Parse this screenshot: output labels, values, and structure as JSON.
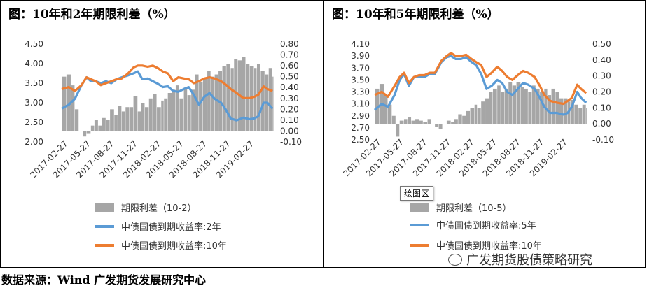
{
  "footer": "数据来源：Wind 广发期货发展研究中心",
  "watermark": "广发期货股债策略研究",
  "tooltip": "绘图区",
  "colors": {
    "spread": "#a6a6a6",
    "y2": "#5b9bd5",
    "y10": "#ed7d31"
  },
  "chart_data": [
    {
      "type": "line",
      "title": "图：10年和2年期限利差（%）",
      "x_ticks": [
        "2017-02-27",
        "2017-05-27",
        "2017-08-27",
        "2017-11-27",
        "2018-02-27",
        "2018-05-27",
        "2018-08-27",
        "2018-11-27",
        "2019-02-27"
      ],
      "x_range": [
        "2017-02-01",
        "2019-05-15"
      ],
      "y_left": {
        "range": [
          2.0,
          4.5
        ],
        "ticks": [
          "2.00",
          "2.50",
          "3.00",
          "3.50",
          "4.00",
          "4.50"
        ]
      },
      "y_right": {
        "range": [
          -0.1,
          0.8
        ],
        "ticks": [
          "-0.10",
          "0.00",
          "0.10",
          "0.20",
          "0.30",
          "0.40",
          "0.50",
          "0.60",
          "0.70",
          "0.80"
        ]
      },
      "series": [
        {
          "name": "期限利差（10-2）",
          "type": "bar",
          "axis": "right",
          "dates": [
            "2017-02-01",
            "2017-02-20",
            "2017-03-10",
            "2017-03-25",
            "2017-04-10",
            "2017-04-25",
            "2017-05-10",
            "2017-05-27",
            "2017-06-10",
            "2017-06-25",
            "2017-07-10",
            "2017-07-25",
            "2017-08-10",
            "2017-08-27",
            "2017-09-10",
            "2017-09-25",
            "2017-10-10",
            "2017-10-25",
            "2017-11-10",
            "2017-11-27",
            "2017-12-10",
            "2017-12-25",
            "2018-01-10",
            "2018-01-25",
            "2018-02-10",
            "2018-02-27",
            "2018-03-10",
            "2018-03-25",
            "2018-04-10",
            "2018-04-25",
            "2018-05-10",
            "2018-05-27",
            "2018-06-10",
            "2018-06-25",
            "2018-07-10",
            "2018-07-25",
            "2018-08-10",
            "2018-08-27",
            "2018-09-10",
            "2018-09-25",
            "2018-10-10",
            "2018-10-25",
            "2018-11-10",
            "2018-11-27",
            "2018-12-10",
            "2018-12-25",
            "2019-01-10",
            "2019-01-25",
            "2019-02-10",
            "2019-02-27",
            "2019-03-10",
            "2019-03-25",
            "2019-04-10",
            "2019-04-25",
            "2019-05-10"
          ],
          "values": [
            0.5,
            0.52,
            0.42,
            0.2,
            0.0,
            -0.05,
            -0.02,
            0.05,
            0.1,
            0.05,
            0.12,
            0.1,
            0.2,
            0.15,
            0.23,
            0.18,
            0.22,
            0.22,
            0.32,
            0.18,
            0.26,
            0.22,
            0.3,
            0.34,
            0.22,
            0.28,
            0.3,
            0.35,
            0.38,
            0.42,
            0.3,
            0.4,
            0.33,
            0.38,
            0.52,
            0.45,
            0.48,
            0.55,
            0.5,
            0.52,
            0.55,
            0.6,
            0.62,
            0.58,
            0.66,
            0.65,
            0.68,
            0.62,
            0.6,
            0.58,
            0.62,
            0.55,
            0.52,
            0.58,
            0.5
          ]
        },
        {
          "name": "中债国债到期收益率:2年",
          "type": "line",
          "axis": "left",
          "dates": [
            "2017-02-01",
            "2017-03-01",
            "2017-03-25",
            "2017-04-20",
            "2017-05-10",
            "2017-05-27",
            "2017-06-15",
            "2017-07-05",
            "2017-07-25",
            "2017-08-15",
            "2017-09-05",
            "2017-09-25",
            "2017-10-20",
            "2017-11-10",
            "2017-11-27",
            "2017-12-15",
            "2018-01-05",
            "2018-01-25",
            "2018-02-15",
            "2018-03-05",
            "2018-03-25",
            "2018-04-15",
            "2018-05-05",
            "2018-05-27",
            "2018-06-15",
            "2018-07-05",
            "2018-07-25",
            "2018-08-15",
            "2018-09-05",
            "2018-09-25",
            "2018-10-20",
            "2018-11-10",
            "2018-11-27",
            "2018-12-20",
            "2019-01-15",
            "2019-02-10",
            "2019-02-27",
            "2019-03-15",
            "2019-04-05",
            "2019-04-20",
            "2019-05-10"
          ],
          "values": [
            2.85,
            2.95,
            3.1,
            3.45,
            3.65,
            3.55,
            3.55,
            3.5,
            3.55,
            3.5,
            3.6,
            3.65,
            3.7,
            3.75,
            3.8,
            3.6,
            3.62,
            3.55,
            3.48,
            3.4,
            3.42,
            3.3,
            3.28,
            3.35,
            3.4,
            3.2,
            2.95,
            3.15,
            3.25,
            3.1,
            3.0,
            2.8,
            2.6,
            2.55,
            2.62,
            2.58,
            2.6,
            2.65,
            3.0,
            3.0,
            2.85
          ]
        },
        {
          "name": "中债国债到期收益率:10年",
          "type": "line",
          "axis": "left",
          "dates": [
            "2017-02-01",
            "2017-03-01",
            "2017-03-25",
            "2017-04-20",
            "2017-05-10",
            "2017-05-27",
            "2017-06-15",
            "2017-07-05",
            "2017-07-25",
            "2017-08-15",
            "2017-09-05",
            "2017-09-25",
            "2017-10-20",
            "2017-11-10",
            "2017-11-27",
            "2017-12-15",
            "2018-01-05",
            "2018-01-25",
            "2018-02-15",
            "2018-03-05",
            "2018-03-25",
            "2018-04-15",
            "2018-05-05",
            "2018-05-27",
            "2018-06-15",
            "2018-07-05",
            "2018-07-25",
            "2018-08-15",
            "2018-09-05",
            "2018-09-25",
            "2018-10-20",
            "2018-11-10",
            "2018-11-27",
            "2018-12-20",
            "2019-01-15",
            "2019-02-10",
            "2019-02-27",
            "2019-03-15",
            "2019-04-05",
            "2019-04-20",
            "2019-05-10"
          ],
          "values": [
            3.35,
            3.4,
            3.3,
            3.45,
            3.65,
            3.6,
            3.55,
            3.45,
            3.5,
            3.55,
            3.6,
            3.62,
            3.75,
            3.9,
            3.95,
            3.95,
            3.92,
            3.95,
            3.88,
            3.8,
            3.75,
            3.55,
            3.65,
            3.62,
            3.6,
            3.5,
            3.55,
            3.62,
            3.65,
            3.62,
            3.55,
            3.45,
            3.35,
            3.25,
            3.12,
            3.12,
            3.15,
            3.2,
            3.42,
            3.35,
            3.3
          ]
        }
      ],
      "legend": [
        "期限利差（10-2）",
        "中债国债到期收益率:2年",
        "中债国债到期收益率:10年"
      ],
      "legend_position": "bottom"
    },
    {
      "type": "line",
      "title": "图：10年和5年期限利差（%）",
      "x_ticks": [
        "2017-02-27",
        "2017-05-27",
        "2017-08-27",
        "2017-11-27",
        "2018-02-27",
        "2018-05-27",
        "2018-08-27",
        "2018-11-27",
        "2019-02-27"
      ],
      "x_range": [
        "2017-02-01",
        "2019-05-15"
      ],
      "y_left": {
        "range": [
          2.5,
          4.1
        ],
        "ticks": [
          "2.50",
          "2.70",
          "2.90",
          "3.10",
          "3.30",
          "3.50",
          "3.70",
          "3.90",
          "4.10"
        ]
      },
      "y_right": {
        "range": [
          -0.1,
          0.5
        ],
        "ticks": [
          "-0.10",
          "0.00",
          "0.10",
          "0.20",
          "0.30",
          "0.40",
          "0.50"
        ]
      },
      "series": [
        {
          "name": "期限利差（10-5）",
          "type": "bar",
          "axis": "right",
          "dates": [
            "2017-02-01",
            "2017-02-20",
            "2017-03-10",
            "2017-03-25",
            "2017-04-10",
            "2017-04-25",
            "2017-05-10",
            "2017-05-27",
            "2017-06-10",
            "2017-06-25",
            "2017-07-10",
            "2017-07-25",
            "2017-08-10",
            "2017-08-27",
            "2017-09-10",
            "2017-09-25",
            "2017-10-10",
            "2017-10-25",
            "2017-11-10",
            "2017-11-27",
            "2017-12-10",
            "2017-12-25",
            "2018-01-10",
            "2018-01-25",
            "2018-02-10",
            "2018-02-27",
            "2018-03-10",
            "2018-03-25",
            "2018-04-10",
            "2018-04-25",
            "2018-05-10",
            "2018-05-27",
            "2018-06-10",
            "2018-06-25",
            "2018-07-10",
            "2018-07-25",
            "2018-08-10",
            "2018-08-27",
            "2018-09-10",
            "2018-09-25",
            "2018-10-10",
            "2018-10-25",
            "2018-11-10",
            "2018-11-27",
            "2018-12-10",
            "2018-12-25",
            "2019-01-10",
            "2019-01-25",
            "2019-02-10",
            "2019-02-27",
            "2019-03-10",
            "2019-03-25",
            "2019-04-10",
            "2019-04-25",
            "2019-05-10"
          ],
          "values": [
            0.22,
            0.25,
            0.18,
            0.12,
            0.05,
            -0.08,
            0.02,
            0.03,
            0.04,
            0.02,
            0.03,
            0.02,
            0.01,
            0.03,
            0.0,
            -0.02,
            -0.03,
            0.0,
            0.02,
            0.01,
            0.03,
            0.06,
            0.05,
            0.08,
            0.1,
            0.12,
            0.1,
            0.14,
            0.16,
            0.2,
            0.22,
            0.24,
            0.2,
            0.22,
            0.26,
            0.24,
            0.26,
            0.23,
            0.22,
            0.2,
            0.24,
            0.22,
            0.2,
            0.22,
            0.18,
            0.22,
            0.2,
            0.16,
            0.16,
            0.14,
            0.15,
            0.12,
            0.1,
            0.12,
            0.1
          ]
        },
        {
          "name": "中债国债到期收益率:5年",
          "type": "line",
          "axis": "left",
          "dates": [
            "2017-02-01",
            "2017-03-01",
            "2017-03-25",
            "2017-04-20",
            "2017-05-10",
            "2017-05-27",
            "2017-06-15",
            "2017-07-05",
            "2017-07-25",
            "2017-08-15",
            "2017-09-05",
            "2017-09-25",
            "2017-10-20",
            "2017-11-10",
            "2017-11-27",
            "2017-12-15",
            "2018-01-05",
            "2018-01-25",
            "2018-02-15",
            "2018-03-05",
            "2018-03-25",
            "2018-04-15",
            "2018-05-05",
            "2018-05-27",
            "2018-06-15",
            "2018-07-05",
            "2018-07-25",
            "2018-08-15",
            "2018-09-05",
            "2018-09-25",
            "2018-10-20",
            "2018-11-10",
            "2018-11-27",
            "2018-12-20",
            "2019-01-15",
            "2019-02-10",
            "2019-02-27",
            "2019-03-15",
            "2019-04-05",
            "2019-04-20",
            "2019-05-10"
          ],
          "values": [
            3.0,
            3.1,
            3.05,
            3.25,
            3.5,
            3.6,
            3.4,
            3.55,
            3.55,
            3.55,
            3.6,
            3.6,
            3.8,
            3.88,
            3.9,
            3.85,
            3.85,
            3.88,
            3.8,
            3.75,
            3.6,
            3.35,
            3.4,
            3.5,
            3.45,
            3.3,
            3.25,
            3.35,
            3.45,
            3.42,
            3.35,
            3.2,
            3.05,
            2.95,
            2.95,
            2.92,
            2.95,
            3.05,
            3.3,
            3.2,
            3.12
          ]
        },
        {
          "name": "中债国债到期收益率:10年",
          "type": "line",
          "axis": "left",
          "dates": [
            "2017-02-01",
            "2017-03-01",
            "2017-03-25",
            "2017-04-20",
            "2017-05-10",
            "2017-05-27",
            "2017-06-15",
            "2017-07-05",
            "2017-07-25",
            "2017-08-15",
            "2017-09-05",
            "2017-09-25",
            "2017-10-20",
            "2017-11-10",
            "2017-11-27",
            "2017-12-15",
            "2018-01-05",
            "2018-01-25",
            "2018-02-15",
            "2018-03-05",
            "2018-03-25",
            "2018-04-15",
            "2018-05-05",
            "2018-05-27",
            "2018-06-15",
            "2018-07-05",
            "2018-07-25",
            "2018-08-15",
            "2018-09-05",
            "2018-09-25",
            "2018-10-20",
            "2018-11-10",
            "2018-11-27",
            "2018-12-20",
            "2019-01-15",
            "2019-02-10",
            "2019-02-27",
            "2019-03-15",
            "2019-04-05",
            "2019-04-20",
            "2019-05-10"
          ],
          "values": [
            3.25,
            3.3,
            3.22,
            3.4,
            3.55,
            3.62,
            3.45,
            3.55,
            3.58,
            3.58,
            3.62,
            3.62,
            3.82,
            3.9,
            3.95,
            3.9,
            3.9,
            3.92,
            3.85,
            3.8,
            3.75,
            3.55,
            3.62,
            3.72,
            3.65,
            3.55,
            3.5,
            3.58,
            3.65,
            3.62,
            3.55,
            3.4,
            3.25,
            3.15,
            3.12,
            3.1,
            3.15,
            3.2,
            3.42,
            3.35,
            3.28
          ]
        }
      ],
      "legend": [
        "期限利差（10-5）",
        "中债国债到期收益率:5年",
        "中债国债到期收益率:10年"
      ],
      "legend_position": "bottom"
    }
  ]
}
